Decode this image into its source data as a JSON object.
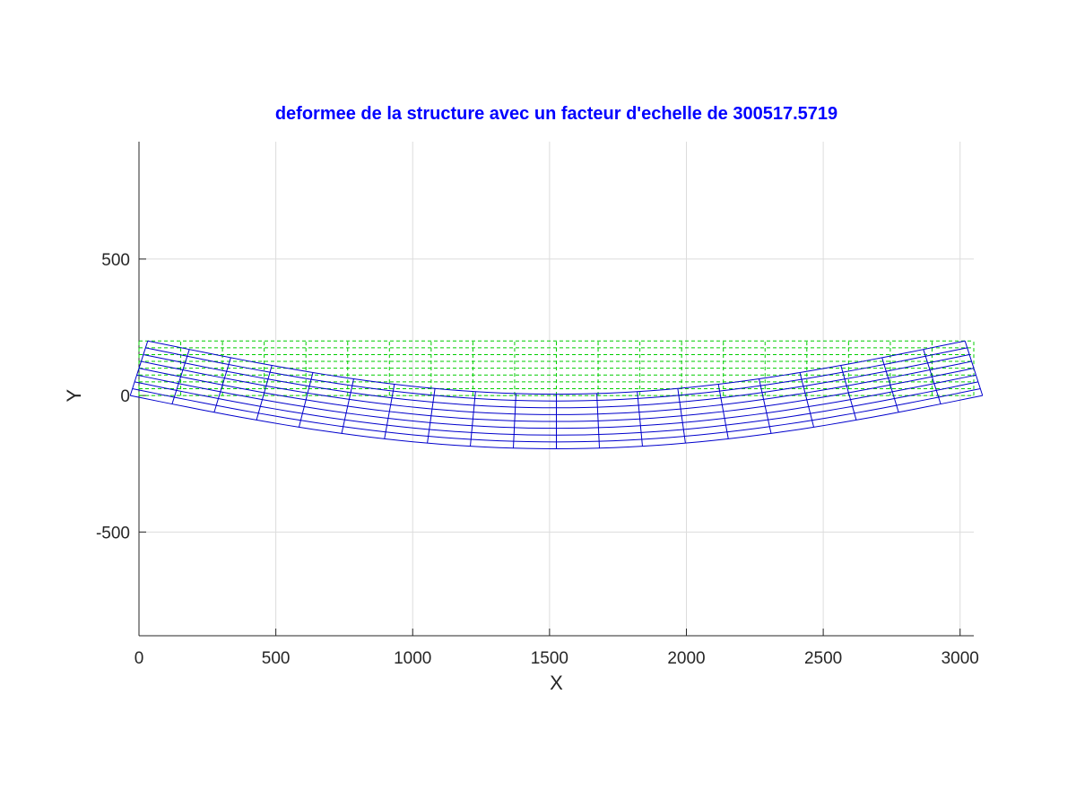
{
  "chart_data": {
    "type": "line",
    "title": "deformee de la structure avec un facteur d'echelle de 300517.5719",
    "xlabel": "X",
    "ylabel": "Y",
    "xlim": [
      0,
      3050
    ],
    "ylim": [
      -880,
      930
    ],
    "x_ticks": [
      0,
      500,
      1000,
      1500,
      2000,
      2500,
      3000
    ],
    "y_ticks": [
      -500,
      0,
      500
    ],
    "grid": true,
    "title_color": "#0000ff",
    "series": [
      {
        "style": "dashed",
        "color": "#00cc00",
        "mesh": {
          "columns_x": [
            0,
            152.5,
            305,
            457.5,
            610,
            762.5,
            915,
            1067.5,
            1220,
            1372.5,
            1525,
            1677.5,
            1830,
            1982.5,
            2135,
            2287.5,
            2440,
            2592.5,
            2745,
            2897.5,
            3050
          ],
          "rows_y": [
            0,
            25,
            50,
            75,
            100,
            125,
            150,
            175,
            200
          ]
        }
      },
      {
        "style": "solid",
        "color": "#0000cc",
        "deformed_mesh": {
          "columns_x": [
            0,
            152.5,
            305,
            457.5,
            610,
            762.5,
            915,
            1067.5,
            1220,
            1372.5,
            1525,
            1677.5,
            1830,
            1982.5,
            2135,
            2287.5,
            2440,
            2592.5,
            2745,
            2897.5,
            3050
          ],
          "rows_y": [
            0,
            25,
            50,
            75,
            100,
            125,
            150,
            175,
            200
          ],
          "max_deflection_y": -195,
          "end_rotation_x_shift": 32
        }
      }
    ]
  }
}
